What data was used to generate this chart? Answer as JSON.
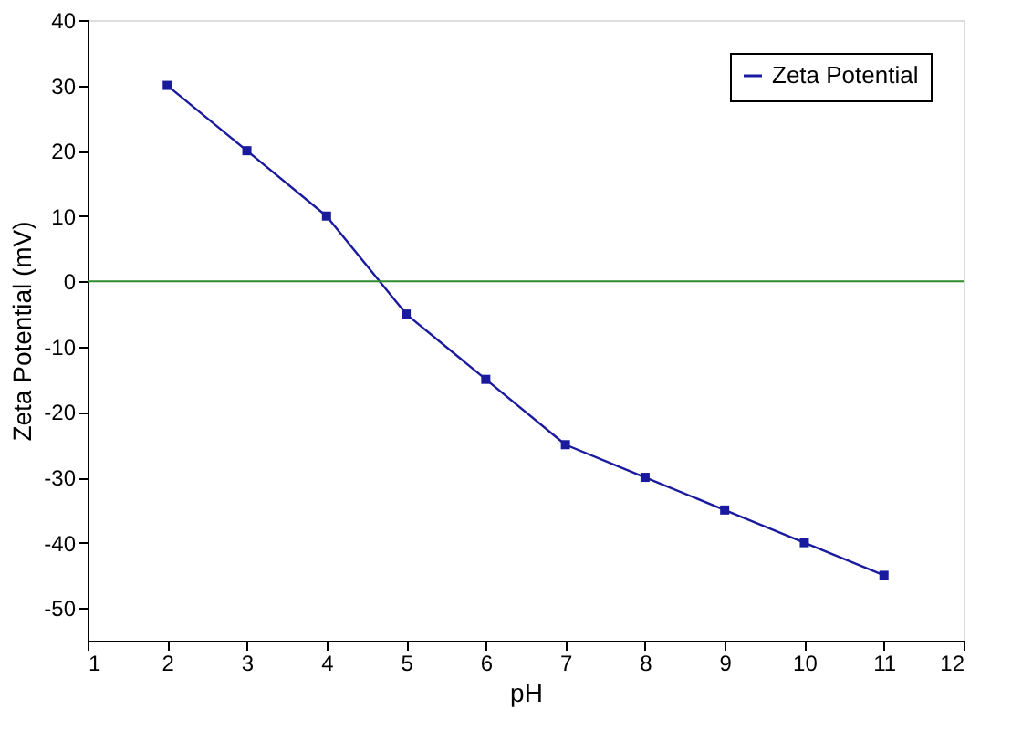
{
  "chart_data": {
    "type": "line",
    "xlabel": "pH",
    "ylabel": "Zeta Potential (mV)",
    "x": [
      2,
      3,
      4,
      5,
      6,
      7,
      8,
      9,
      10,
      11
    ],
    "series": [
      {
        "name": "Zeta Potential",
        "color": "#1a1a9e",
        "values": [
          30,
          20,
          10,
          -5,
          -15,
          -25,
          -30,
          -35,
          -40,
          -45
        ]
      }
    ],
    "xlim": [
      1,
      12
    ],
    "xticks": [
      1,
      2,
      3,
      4,
      5,
      6,
      7,
      8,
      9,
      10,
      11,
      12
    ],
    "ylim": [
      -55,
      40
    ],
    "yticks": [
      -50,
      -40,
      -30,
      -20,
      -10,
      0,
      10,
      20,
      30,
      40
    ],
    "ref_lines": [
      {
        "axis": "y",
        "value": 0,
        "color": "#2e8b2e",
        "line_style": "solid"
      }
    ],
    "marker": "square",
    "line_style": "solid",
    "grid": false,
    "legend": "top right"
  }
}
